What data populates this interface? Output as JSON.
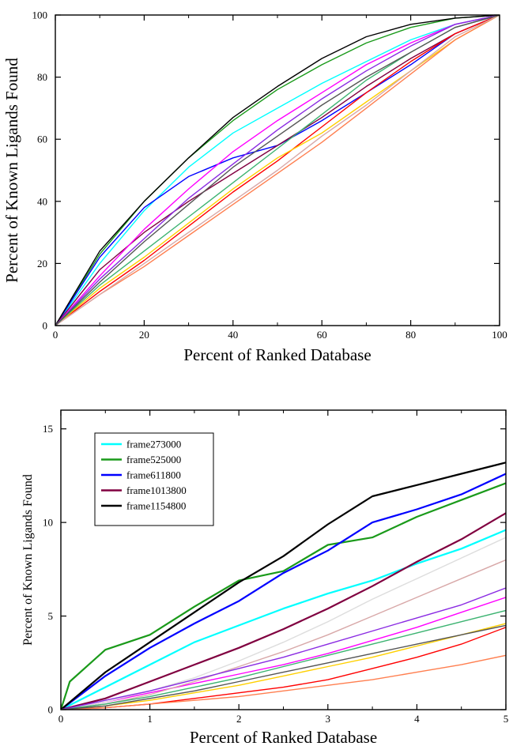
{
  "chart_data": [
    {
      "type": "line",
      "xlabel": "Percent of Ranked Database",
      "ylabel": "Percent of Known Ligands Found",
      "xlim": [
        0,
        100
      ],
      "ylim": [
        0,
        100
      ],
      "xticks": [
        "0",
        "20",
        "40",
        "60",
        "80",
        "100"
      ],
      "yticks": [
        "0",
        "20",
        "40",
        "60",
        "80",
        "100"
      ],
      "grid": false,
      "series": [
        {
          "color": "#00ffff",
          "x": [
            0,
            10,
            20,
            30,
            40,
            50,
            60,
            70,
            80,
            90,
            100
          ],
          "y": [
            0,
            20,
            37,
            51,
            62,
            70,
            78,
            85,
            92,
            97,
            100
          ]
        },
        {
          "color": "#1a9a1a",
          "x": [
            0,
            10,
            20,
            30,
            40,
            50,
            60,
            70,
            80,
            90,
            100
          ],
          "y": [
            0,
            23,
            40,
            54,
            66,
            76,
            84,
            91,
            96,
            99,
            100
          ]
        },
        {
          "color": "#0000ff",
          "x": [
            0,
            10,
            20,
            30,
            40,
            50,
            60,
            70,
            80,
            90,
            100
          ],
          "y": [
            0,
            22,
            38,
            48,
            54,
            58,
            66,
            75,
            84,
            94,
            100
          ]
        },
        {
          "color": "#800040",
          "x": [
            0,
            10,
            20,
            30,
            40,
            50,
            60,
            70,
            80,
            90,
            100
          ],
          "y": [
            0,
            18,
            30,
            40,
            49,
            58,
            67,
            77,
            86,
            94,
            100
          ]
        },
        {
          "color": "#000000",
          "x": [
            0,
            10,
            20,
            30,
            40,
            50,
            60,
            70,
            80,
            90,
            100
          ],
          "y": [
            0,
            24,
            40,
            54,
            67,
            77,
            86,
            93,
            97,
            99,
            100
          ]
        },
        {
          "color": "#ff0000",
          "x": [
            0,
            10,
            20,
            30,
            40,
            50,
            60,
            70,
            80,
            90,
            100
          ],
          "y": [
            0,
            11,
            21,
            32,
            43,
            53,
            64,
            75,
            85,
            94,
            100
          ]
        },
        {
          "color": "#ff00ff",
          "x": [
            0,
            10,
            20,
            30,
            40,
            50,
            60,
            70,
            80,
            90,
            100
          ],
          "y": [
            0,
            16,
            31,
            44,
            56,
            66,
            75,
            84,
            91,
            97,
            100
          ]
        },
        {
          "color": "#ffd000",
          "x": [
            0,
            10,
            20,
            30,
            40,
            50,
            60,
            70,
            80,
            90,
            100
          ],
          "y": [
            0,
            12,
            22,
            33,
            44,
            54,
            62,
            72,
            82,
            92,
            100
          ]
        },
        {
          "color": "#ff7f50",
          "x": [
            0,
            10,
            20,
            30,
            40,
            50,
            60,
            70,
            80,
            90,
            100
          ],
          "y": [
            0,
            10,
            19,
            29,
            39,
            49,
            59,
            70,
            81,
            92,
            100
          ]
        },
        {
          "color": "#d8a8a8",
          "x": [
            0,
            10,
            20,
            30,
            40,
            50,
            60,
            70,
            80,
            90,
            100
          ],
          "y": [
            0,
            10,
            20,
            30,
            40,
            50,
            61,
            71,
            82,
            93,
            100
          ]
        },
        {
          "color": "#3cb371",
          "x": [
            0,
            10,
            20,
            30,
            40,
            50,
            60,
            70,
            80,
            90,
            100
          ],
          "y": [
            0,
            13,
            24,
            35,
            46,
            57,
            68,
            79,
            88,
            96,
            100
          ]
        },
        {
          "color": "#8a2be2",
          "x": [
            0,
            10,
            20,
            30,
            40,
            50,
            60,
            70,
            80,
            90,
            100
          ],
          "y": [
            0,
            15,
            28,
            41,
            52,
            63,
            73,
            82,
            90,
            97,
            100
          ]
        },
        {
          "color": "#555555",
          "x": [
            0,
            10,
            20,
            30,
            40,
            50,
            60,
            70,
            80,
            90,
            100
          ],
          "y": [
            0,
            14,
            27,
            39,
            51,
            61,
            71,
            80,
            88,
            96,
            100
          ]
        }
      ]
    },
    {
      "type": "line",
      "xlabel": "Percent of Ranked Database",
      "ylabel": "Percent of Known Ligands Found",
      "xlim": [
        0,
        5
      ],
      "ylim": [
        0,
        16
      ],
      "xticks": [
        "0",
        "1",
        "2",
        "3",
        "4",
        "5"
      ],
      "yticks": [
        "0",
        "5",
        "10",
        "15"
      ],
      "grid": false,
      "legend_position": "top-left",
      "series": [
        {
          "name": "frame273000",
          "color": "#00ffff",
          "x": [
            0,
            0.5,
            1,
            1.5,
            2,
            2.5,
            3,
            3.5,
            4,
            4.5,
            5
          ],
          "y": [
            0,
            1.2,
            2.4,
            3.6,
            4.5,
            5.4,
            6.2,
            6.9,
            7.8,
            8.6,
            9.6
          ]
        },
        {
          "name": "frame525000",
          "color": "#1a9a1a",
          "x": [
            0,
            0.1,
            0.5,
            1,
            1.5,
            2,
            2.5,
            3,
            3.5,
            4,
            4.5,
            5
          ],
          "y": [
            0,
            1.5,
            3.2,
            4.0,
            5.5,
            6.9,
            7.4,
            8.8,
            9.2,
            10.3,
            11.2,
            12.1
          ]
        },
        {
          "name": "frame611800",
          "color": "#0000ff",
          "x": [
            0,
            0.5,
            1,
            1.5,
            2,
            2.5,
            3,
            3.5,
            4,
            4.5,
            5
          ],
          "y": [
            0,
            1.8,
            3.3,
            4.6,
            5.8,
            7.3,
            8.5,
            10.0,
            10.7,
            11.5,
            12.6
          ]
        },
        {
          "name": "frame1013800",
          "color": "#800040",
          "x": [
            0,
            0.5,
            1,
            1.5,
            2,
            2.5,
            3,
            3.5,
            4,
            4.5,
            5
          ],
          "y": [
            0,
            0.6,
            1.5,
            2.4,
            3.3,
            4.3,
            5.4,
            6.6,
            7.9,
            9.1,
            10.5
          ]
        },
        {
          "name": "frame1154800",
          "color": "#000000",
          "x": [
            0,
            0.5,
            1,
            1.5,
            2,
            2.5,
            3,
            3.5,
            4,
            4.5,
            5
          ],
          "y": [
            0,
            2.0,
            3.6,
            5.2,
            6.8,
            8.2,
            9.9,
            11.4,
            12.0,
            12.6,
            13.2
          ]
        },
        {
          "color": "#ff0000",
          "x": [
            0,
            0.5,
            1,
            1.5,
            2,
            2.5,
            3,
            3.5,
            4,
            4.5,
            5
          ],
          "y": [
            0,
            0.1,
            0.3,
            0.6,
            0.9,
            1.2,
            1.6,
            2.2,
            2.8,
            3.5,
            4.4
          ]
        },
        {
          "color": "#ff00ff",
          "x": [
            0,
            0.5,
            1,
            1.5,
            2,
            2.5,
            3,
            3.5,
            4,
            4.5,
            5
          ],
          "y": [
            0,
            0.4,
            0.9,
            1.4,
            1.9,
            2.4,
            3.0,
            3.7,
            4.4,
            5.2,
            6.0
          ]
        },
        {
          "color": "#ffd000",
          "x": [
            0,
            0.5,
            1,
            1.5,
            2,
            2.5,
            3,
            3.5,
            4,
            4.5,
            5
          ],
          "y": [
            0,
            0.2,
            0.5,
            0.9,
            1.3,
            1.8,
            2.3,
            2.8,
            3.4,
            4.0,
            4.6
          ]
        },
        {
          "color": "#ff7f50",
          "x": [
            0,
            0.5,
            1,
            1.5,
            2,
            2.5,
            3,
            3.5,
            4,
            4.5,
            5
          ],
          "y": [
            0,
            0.1,
            0.3,
            0.5,
            0.7,
            1.0,
            1.3,
            1.6,
            2.0,
            2.4,
            2.9
          ]
        },
        {
          "color": "#d8a8a8",
          "x": [
            0,
            0.5,
            1,
            1.5,
            2,
            2.5,
            3,
            3.5,
            4,
            4.5,
            5
          ],
          "y": [
            0,
            0.3,
            0.8,
            1.5,
            2.3,
            3.1,
            4.0,
            5.0,
            6.0,
            7.0,
            8.0
          ]
        },
        {
          "color": "#dddddd",
          "x": [
            0,
            0.5,
            1,
            1.5,
            2,
            2.5,
            3,
            3.5,
            4,
            4.5,
            5
          ],
          "y": [
            0,
            0.4,
            1.0,
            1.7,
            2.6,
            3.6,
            4.7,
            5.9,
            7.0,
            8.1,
            9.2
          ]
        },
        {
          "color": "#3cb371",
          "x": [
            0,
            0.5,
            1,
            1.5,
            2,
            2.5,
            3,
            3.5,
            4,
            4.5,
            5
          ],
          "y": [
            0,
            0.3,
            0.7,
            1.2,
            1.7,
            2.3,
            2.9,
            3.5,
            4.1,
            4.7,
            5.3
          ]
        },
        {
          "color": "#8a2be2",
          "x": [
            0,
            0.5,
            1,
            1.5,
            2,
            2.5,
            3,
            3.5,
            4,
            4.5,
            5
          ],
          "y": [
            0,
            0.5,
            1.0,
            1.6,
            2.2,
            2.8,
            3.5,
            4.2,
            4.9,
            5.6,
            6.5
          ]
        },
        {
          "color": "#555555",
          "x": [
            0,
            0.5,
            1,
            1.5,
            2,
            2.5,
            3,
            3.5,
            4,
            4.5,
            5
          ],
          "y": [
            0,
            0.2,
            0.6,
            1.0,
            1.5,
            2.0,
            2.5,
            3.0,
            3.5,
            4.0,
            4.5
          ]
        }
      ]
    }
  ]
}
